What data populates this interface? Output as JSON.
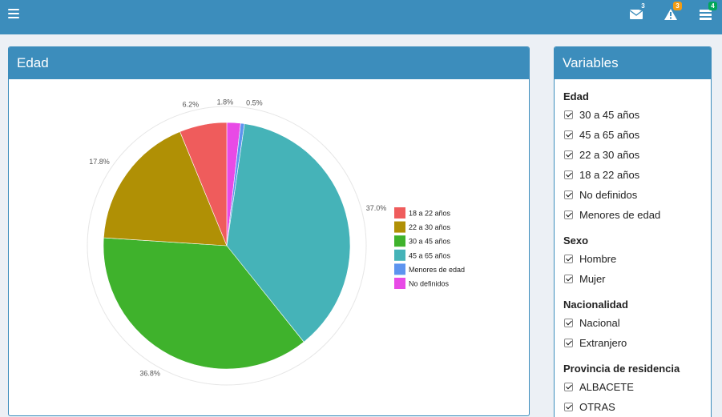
{
  "topbar": {
    "menu_icon": "hamburger-icon",
    "notifications": [
      {
        "icon": "envelope-icon",
        "count": "3",
        "color": "#3c8dbc"
      },
      {
        "icon": "warning-icon",
        "count": "3",
        "color": "#f39c12"
      },
      {
        "icon": "tasks-icon",
        "count": "4",
        "color": "#00a65a"
      }
    ]
  },
  "chart_box": {
    "title": "Edad"
  },
  "chart_data": {
    "type": "pie",
    "title": "Edad",
    "slices": [
      {
        "name": "18 a 22 años",
        "value": 6.2,
        "label": "6.2%",
        "color": "#ef5c5c"
      },
      {
        "name": "22 a 30 años",
        "value": 17.8,
        "label": "17.8%",
        "color": "#b09005"
      },
      {
        "name": "30 a 45 años",
        "value": 36.8,
        "label": "36.8%",
        "color": "#3fb22c"
      },
      {
        "name": "45 a 65 años",
        "value": 37.0,
        "label": "37.0%",
        "color": "#45b3b8"
      },
      {
        "name": "Menores de edad",
        "value": 0.5,
        "label": "0.5%",
        "color": "#5d94ef"
      },
      {
        "name": "No definidos",
        "value": 1.8,
        "label": "1.8%",
        "color": "#e84ae6"
      }
    ],
    "legend_position": "right",
    "legend_order": [
      "18 a 22 años",
      "22 a 30 años",
      "30 a 45 años",
      "45 a 65 años",
      "Menores de edad",
      "No definidos"
    ]
  },
  "variables": {
    "title": "Variables",
    "groups": [
      {
        "title": "Edad",
        "items": [
          "30 a 45 años",
          "45 a 65 años",
          "22 a 30 años",
          "18 a 22 años",
          "No definidos",
          "Menores de edad"
        ]
      },
      {
        "title": "Sexo",
        "items": [
          "Hombre",
          "Mujer"
        ]
      },
      {
        "title": "Nacionalidad",
        "items": [
          "Nacional",
          "Extranjero"
        ]
      },
      {
        "title": "Provincia de residencia",
        "items": [
          "ALBACETE",
          "OTRAS"
        ]
      }
    ]
  }
}
